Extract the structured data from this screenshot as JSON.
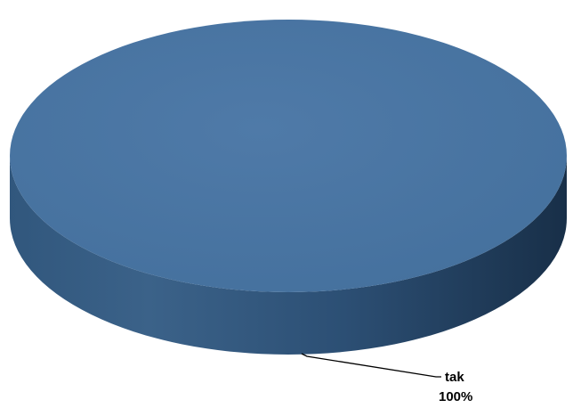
{
  "chart_data": {
    "type": "pie",
    "style": "3d",
    "categories": [
      "tak"
    ],
    "values": [
      100
    ],
    "data_labels": [
      {
        "category": "tak",
        "percent": "100%"
      }
    ],
    "title": "",
    "legend": "none"
  },
  "colors": {
    "slice_top": "#4A74A2",
    "slice_side_light": "#3A6289",
    "slice_side_dark": "#1B3550",
    "leader_line": "#000000"
  }
}
